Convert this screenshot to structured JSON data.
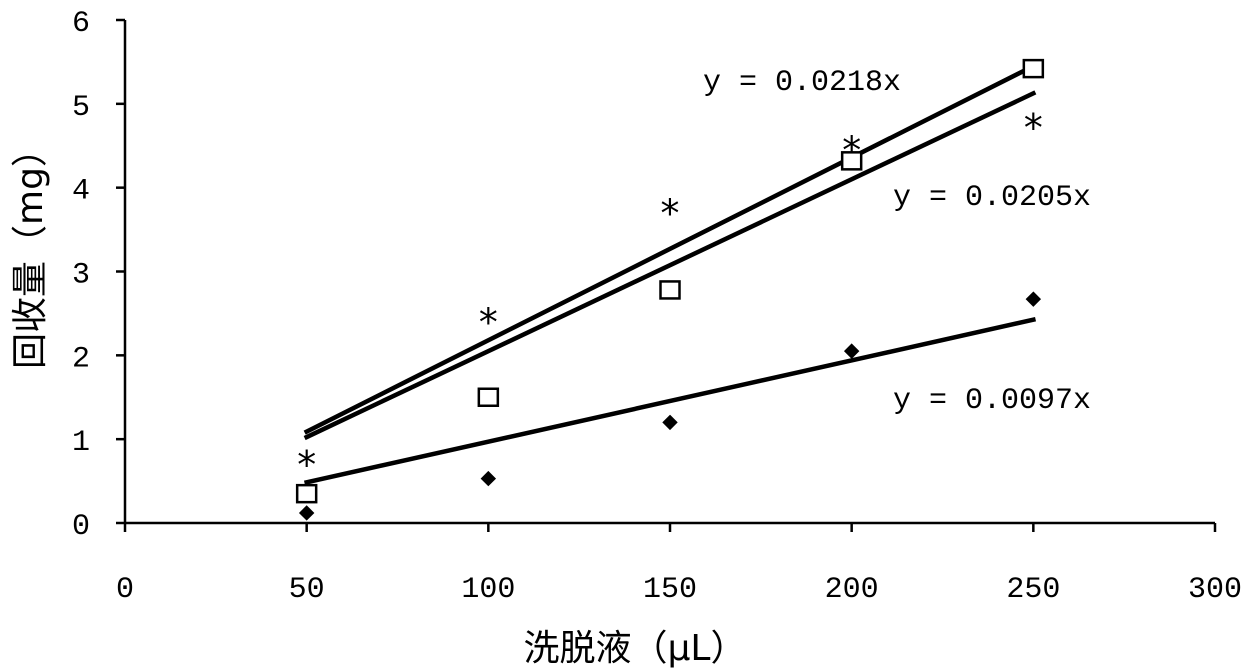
{
  "chart_data": {
    "type": "scatter",
    "xlabel": "洗脱液（μL）",
    "ylabel": "回收量（mg）",
    "xlim": [
      0,
      300
    ],
    "ylim": [
      0,
      6
    ],
    "xticks": [
      0,
      50,
      100,
      150,
      200,
      250,
      300
    ],
    "yticks": [
      0,
      1,
      2,
      3,
      4,
      5,
      6
    ],
    "grid": false,
    "series": [
      {
        "marker": "square",
        "x": [
          50,
          100,
          150,
          200,
          250
        ],
        "y": [
          0.35,
          1.5,
          2.78,
          4.32,
          5.42
        ],
        "fit": {
          "slope": 0.0218,
          "equation": "y = 0.0218x"
        }
      },
      {
        "marker": "asterisk",
        "x": [
          50,
          100,
          150,
          200,
          250
        ],
        "y": [
          0.8,
          2.5,
          3.8,
          4.55,
          4.82
        ],
        "fit": {
          "slope": 0.0205,
          "equation": "y = 0.0205x"
        }
      },
      {
        "marker": "diamond",
        "x": [
          50,
          100,
          150,
          200,
          250
        ],
        "y": [
          0.12,
          0.53,
          1.2,
          2.05,
          2.67
        ],
        "fit": {
          "slope": 0.0097,
          "equation": "y = 0.0097x"
        }
      }
    ]
  }
}
